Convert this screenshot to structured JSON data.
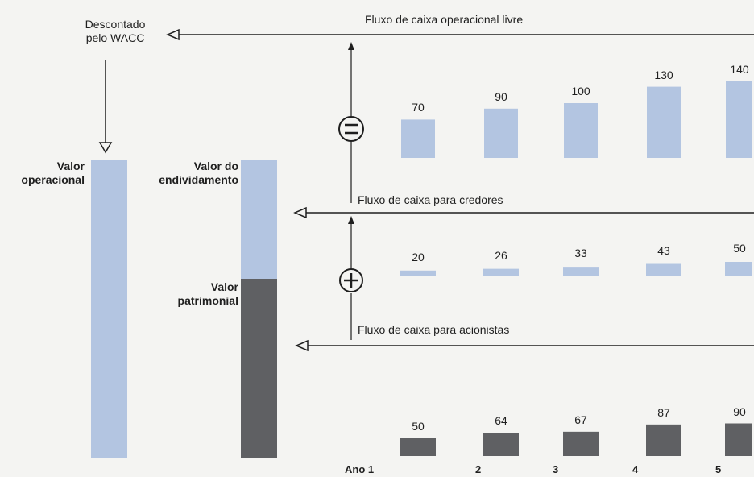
{
  "labels": {
    "discounted": "Descontado\npelo WACC",
    "operational_value": "Valor\noperacional",
    "debt_value": "Valor do\nendividamento",
    "equity_value": "Valor\npatrimonial",
    "fcf": "Fluxo de caixa operacional livre",
    "creditors": "Fluxo de caixa para credores",
    "shareholders": "Fluxo de caixa para acionistas"
  },
  "operators": {
    "equals": "=",
    "plus": "+"
  },
  "years": [
    "Ano 1",
    "2",
    "3",
    "4",
    "5"
  ],
  "flows": {
    "fcf": [
      70,
      90,
      100,
      130,
      140
    ],
    "creditors": [
      20,
      26,
      33,
      43,
      50
    ],
    "shareholders": [
      50,
      64,
      67,
      87,
      90
    ]
  },
  "colors": {
    "light": "#b3c5e1",
    "dark": "#5f6063",
    "line": "#1f1f1f"
  }
}
